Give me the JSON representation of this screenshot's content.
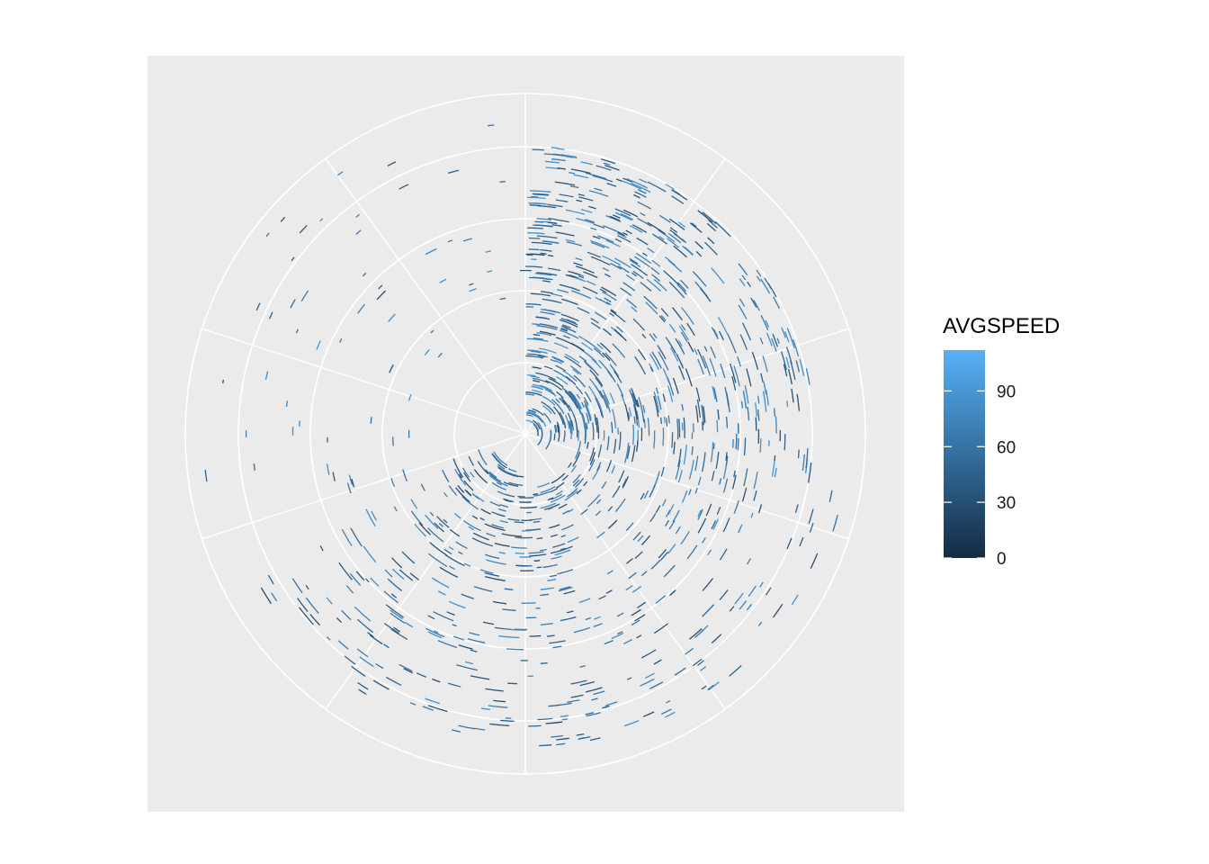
{
  "chart_data": {
    "type": "polar-segments",
    "coord": "polar",
    "title": "",
    "xlabel": "",
    "ylabel": "",
    "grid": true,
    "panel_background": "#EBEBEB",
    "grid_color": "#FFFFFF",
    "legend": {
      "title": "AVGSPEED",
      "placement": "right",
      "breaks": [
        0,
        30,
        60,
        90
      ],
      "labels": [
        "0",
        "30",
        "60",
        "90"
      ],
      "limits": [
        0,
        112
      ],
      "low_color": "#132B43",
      "high_color": "#56B1F7"
    },
    "data_summary": "Short arc segments at many radii and angles, concentrated in the first quadrant (top-right) near the centre; colour encodes AVGSPEED."
  }
}
